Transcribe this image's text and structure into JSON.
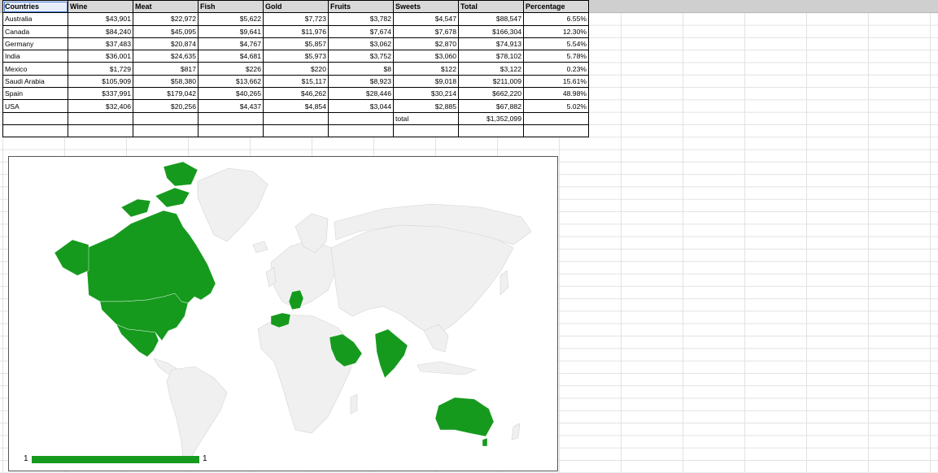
{
  "table": {
    "headers": [
      "Countries",
      "Wine",
      "Meat",
      "Fish",
      "Gold",
      "Fruits",
      "Sweets",
      "Total",
      "Percentage"
    ],
    "rows": [
      [
        "Australia",
        "$43,901",
        "$22,972",
        "$5,622",
        "$7,723",
        "$3,782",
        "$4,547",
        "$88,547",
        "6.55%"
      ],
      [
        "Canada",
        "$84,240",
        "$45,095",
        "$9,641",
        "$11,976",
        "$7,674",
        "$7,678",
        "$166,304",
        "12.30%"
      ],
      [
        "Germany",
        "$37,483",
        "$20,874",
        "$4,767",
        "$5,857",
        "$3,062",
        "$2,870",
        "$74,913",
        "5.54%"
      ],
      [
        "India",
        "$36,001",
        "$24,635",
        "$4,681",
        "$5,973",
        "$3,752",
        "$3,060",
        "$78,102",
        "5.78%"
      ],
      [
        "Mexico",
        "$1,729",
        "$817",
        "$226",
        "$220",
        "$8",
        "$122",
        "$3,122",
        "0.23%"
      ],
      [
        "Saudi Arabia",
        "$105,909",
        "$58,380",
        "$13,662",
        "$15,117",
        "$8,923",
        "$9,018",
        "$211,009",
        "15.61%"
      ],
      [
        "Spain",
        "$337,991",
        "$179,042",
        "$40,265",
        "$46,262",
        "$28,446",
        "$30,214",
        "$662,220",
        "48.98%"
      ],
      [
        "USA",
        "$32,406",
        "$20,256",
        "$4,437",
        "$4,854",
        "$3,044",
        "$2,885",
        "$67,882",
        "5.02%"
      ]
    ],
    "total_label": "total",
    "total_value": "$1,352,099"
  },
  "map": {
    "highlight_color": "#169a1e",
    "base_color": "#f0f0f0",
    "border_color": "#d4d4d4",
    "highlighted_countries": [
      "Australia",
      "Canada",
      "Germany",
      "India",
      "Mexico",
      "Saudi Arabia",
      "Spain",
      "USA"
    ],
    "legend_min": "1",
    "legend_max": "1"
  }
}
